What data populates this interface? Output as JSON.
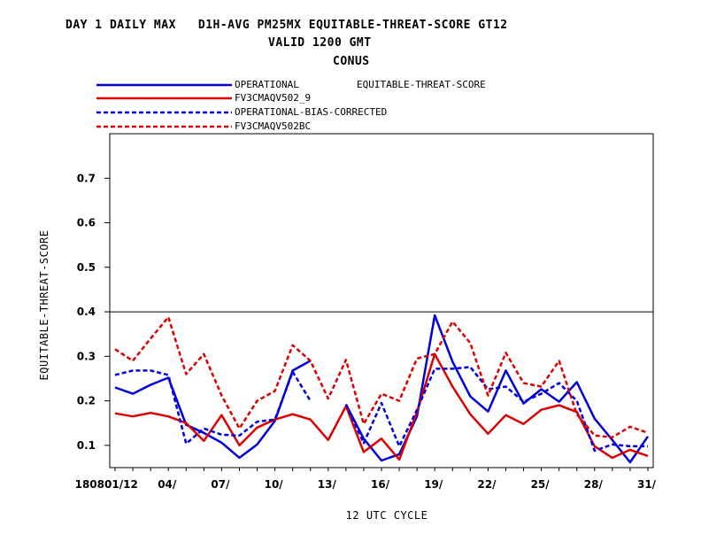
{
  "chart_data": {
    "type": "line",
    "title": "DAY 1 DAILY MAX   D1H-AVG PM25MX EQUITABLE-THREAT-SCORE GT12",
    "subtitle": "VALID 1200 GMT",
    "region": "CONUS",
    "legend_header": "EQUITABLE-THREAT-SCORE",
    "xlabel": "12 UTC CYCLE",
    "ylabel": "EQUITABLE-THREAT-SCORE",
    "ylim": [
      0.05,
      0.8
    ],
    "xlim": [
      0.7,
      31.3
    ],
    "x_tick_labels": [
      {
        "x": 1,
        "label": "01/12"
      },
      {
        "x": 4,
        "label": "04/"
      },
      {
        "x": 7,
        "label": "07/"
      },
      {
        "x": 10,
        "label": "10/"
      },
      {
        "x": 13,
        "label": "13/"
      },
      {
        "x": 16,
        "label": "16/"
      },
      {
        "x": 19,
        "label": "19/"
      },
      {
        "x": 22,
        "label": "22/"
      },
      {
        "x": 25,
        "label": "25/"
      },
      {
        "x": 28,
        "label": "28/"
      },
      {
        "x": 31,
        "label": "31/"
      }
    ],
    "x_prefix_label": "1808",
    "y_ticks": [
      0.1,
      0.2,
      0.3,
      0.4,
      0.5,
      0.6,
      0.7
    ],
    "y_tick_labels": [
      "0.1",
      "0.2",
      "0.3",
      "0.4",
      "0.5",
      "0.6",
      "0.7"
    ],
    "reference_line": 0.4,
    "legend_position": "top-left",
    "series": [
      {
        "name": "OPERATIONAL",
        "color": "#0000dd",
        "dash": "solid",
        "x": [
          1,
          2,
          3,
          4,
          5,
          6,
          7,
          8,
          9,
          10,
          11,
          12,
          13,
          14,
          15,
          16,
          17,
          18,
          19,
          20,
          21,
          22,
          23,
          24,
          25,
          26,
          27,
          28,
          29,
          30,
          31
        ],
        "y": [
          0.23,
          0.216,
          0.236,
          0.252,
          0.146,
          0.128,
          0.106,
          0.072,
          0.102,
          0.155,
          0.268,
          0.29,
          null,
          0.192,
          0.115,
          0.066,
          0.08,
          0.165,
          0.392,
          0.288,
          0.21,
          0.176,
          0.268,
          0.194,
          0.226,
          0.198,
          0.242,
          0.16,
          0.112,
          0.062,
          0.12
        ]
      },
      {
        "name": "FV3CMAQV502_9",
        "color": "#dd0000",
        "dash": "solid",
        "x": [
          1,
          2,
          3,
          4,
          5,
          6,
          7,
          8,
          9,
          10,
          11,
          12,
          13,
          14,
          15,
          16,
          17,
          18,
          19,
          20,
          21,
          22,
          23,
          24,
          25,
          26,
          27,
          28,
          29,
          30,
          31
        ],
        "y": [
          0.172,
          0.165,
          0.173,
          0.165,
          0.15,
          0.11,
          0.168,
          0.1,
          0.14,
          0.158,
          0.17,
          0.158,
          0.112,
          0.188,
          0.085,
          0.115,
          0.068,
          0.175,
          0.305,
          0.232,
          0.17,
          0.126,
          0.168,
          0.148,
          0.18,
          0.19,
          0.175,
          0.098,
          0.072,
          0.09,
          0.076
        ]
      },
      {
        "name": "OPERATIONAL-BIAS-CORRECTED",
        "color": "#0000dd",
        "dash": "dashed",
        "x": [
          1,
          2,
          3,
          4,
          5,
          6,
          7,
          8,
          9,
          10,
          11,
          12,
          13,
          14,
          15,
          16,
          17,
          18,
          19,
          20,
          21,
          22,
          23,
          24,
          25,
          26,
          27,
          28,
          29,
          30,
          31
        ],
        "y": [
          0.258,
          0.268,
          0.268,
          0.258,
          0.104,
          0.138,
          0.124,
          0.122,
          0.153,
          0.158,
          0.265,
          0.2,
          null,
          0.192,
          0.105,
          0.195,
          0.098,
          0.18,
          0.272,
          0.272,
          0.276,
          0.226,
          0.232,
          0.198,
          0.216,
          0.24,
          0.2,
          0.088,
          0.102,
          0.098,
          0.098
        ]
      },
      {
        "name": "FV3CMAQV502BC",
        "color": "#dd0000",
        "dash": "dashed",
        "x": [
          1,
          2,
          3,
          4,
          5,
          6,
          7,
          8,
          9,
          10,
          11,
          12,
          13,
          14,
          15,
          16,
          17,
          18,
          19,
          20,
          21,
          22,
          23,
          24,
          25,
          26,
          27,
          28,
          29,
          30,
          31
        ],
        "y": [
          0.316,
          0.29,
          0.34,
          0.388,
          0.26,
          0.305,
          0.212,
          0.138,
          0.2,
          0.222,
          0.325,
          0.29,
          0.205,
          0.292,
          0.148,
          0.216,
          0.2,
          0.295,
          0.305,
          0.378,
          0.33,
          0.212,
          0.308,
          0.24,
          0.232,
          0.29,
          0.17,
          0.122,
          0.118,
          0.142,
          0.128
        ]
      }
    ]
  }
}
